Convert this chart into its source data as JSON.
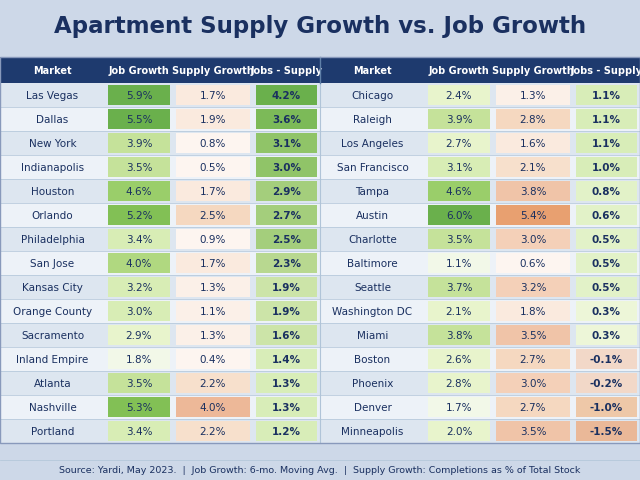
{
  "title": "Apartment Supply Growth vs. Job Growth",
  "title_color": "#1a3060",
  "header_bg": "#1e3a6e",
  "header_text_color": "#ffffff",
  "title_bg": "#cdd8e8",
  "footer_text": "Source: Yardi, May 2023.  |  Job Growth: 6-mo. Moving Avg.  |  Supply Growth: Completions as % of Total Stock",
  "footer_bg": "#cdd8e8",
  "col_headers_left": [
    "Market",
    "Job Growth",
    "Supply Growth",
    "Jobs - Supply"
  ],
  "col_headers_right": [
    "Market",
    "Job Growth",
    "Supply Growth",
    "Jobs - Supply"
  ],
  "left_data": [
    [
      "Las Vegas",
      "5.9%",
      "1.7%",
      "4.2%"
    ],
    [
      "Dallas",
      "5.5%",
      "1.9%",
      "3.6%"
    ],
    [
      "New York",
      "3.9%",
      "0.8%",
      "3.1%"
    ],
    [
      "Indianapolis",
      "3.5%",
      "0.5%",
      "3.0%"
    ],
    [
      "Houston",
      "4.6%",
      "1.7%",
      "2.9%"
    ],
    [
      "Orlando",
      "5.2%",
      "2.5%",
      "2.7%"
    ],
    [
      "Philadelphia",
      "3.4%",
      "0.9%",
      "2.5%"
    ],
    [
      "San Jose",
      "4.0%",
      "1.7%",
      "2.3%"
    ],
    [
      "Kansas City",
      "3.2%",
      "1.3%",
      "1.9%"
    ],
    [
      "Orange County",
      "3.0%",
      "1.1%",
      "1.9%"
    ],
    [
      "Sacramento",
      "2.9%",
      "1.3%",
      "1.6%"
    ],
    [
      "Inland Empire",
      "1.8%",
      "0.4%",
      "1.4%"
    ],
    [
      "Atlanta",
      "3.5%",
      "2.2%",
      "1.3%"
    ],
    [
      "Nashville",
      "5.3%",
      "4.0%",
      "1.3%"
    ],
    [
      "Portland",
      "3.4%",
      "2.2%",
      "1.2%"
    ]
  ],
  "right_data": [
    [
      "Chicago",
      "2.4%",
      "1.3%",
      "1.1%"
    ],
    [
      "Raleigh",
      "3.9%",
      "2.8%",
      "1.1%"
    ],
    [
      "Los Angeles",
      "2.7%",
      "1.6%",
      "1.1%"
    ],
    [
      "San Francisco",
      "3.1%",
      "2.1%",
      "1.0%"
    ],
    [
      "Tampa",
      "4.6%",
      "3.8%",
      "0.8%"
    ],
    [
      "Austin",
      "6.0%",
      "5.4%",
      "0.6%"
    ],
    [
      "Charlotte",
      "3.5%",
      "3.0%",
      "0.5%"
    ],
    [
      "Baltimore",
      "1.1%",
      "0.6%",
      "0.5%"
    ],
    [
      "Seattle",
      "3.7%",
      "3.2%",
      "0.5%"
    ],
    [
      "Washington DC",
      "2.1%",
      "1.8%",
      "0.3%"
    ],
    [
      "Miami",
      "3.8%",
      "3.5%",
      "0.3%"
    ],
    [
      "Boston",
      "2.6%",
      "2.7%",
      "-0.1%"
    ],
    [
      "Phoenix",
      "2.8%",
      "3.0%",
      "-0.2%"
    ],
    [
      "Denver",
      "1.7%",
      "2.7%",
      "-1.0%"
    ],
    [
      "Minneapolis",
      "2.0%",
      "3.5%",
      "-1.5%"
    ]
  ],
  "left_diff_values": [
    4.2,
    3.6,
    3.1,
    3.0,
    2.9,
    2.7,
    2.5,
    2.3,
    1.9,
    1.9,
    1.6,
    1.4,
    1.3,
    1.3,
    1.2
  ],
  "right_diff_values": [
    1.1,
    1.1,
    1.1,
    1.0,
    0.8,
    0.6,
    0.5,
    0.5,
    0.5,
    0.3,
    0.3,
    -0.1,
    -0.2,
    -1.0,
    -1.5
  ],
  "left_job_values": [
    5.9,
    5.5,
    3.9,
    3.5,
    4.6,
    5.2,
    3.4,
    4.0,
    3.2,
    3.0,
    2.9,
    1.8,
    3.5,
    5.3,
    3.4
  ],
  "left_supply_values": [
    1.7,
    1.9,
    0.8,
    0.5,
    1.7,
    2.5,
    0.9,
    1.7,
    1.3,
    1.1,
    1.3,
    0.4,
    2.2,
    4.0,
    2.2
  ],
  "right_job_values": [
    2.4,
    3.9,
    2.7,
    3.1,
    4.6,
    6.0,
    3.5,
    1.1,
    3.7,
    2.1,
    3.8,
    2.6,
    2.8,
    1.7,
    2.0
  ],
  "right_supply_values": [
    1.3,
    2.8,
    1.6,
    2.1,
    3.8,
    5.4,
    3.0,
    0.6,
    3.2,
    1.8,
    3.5,
    2.7,
    3.0,
    2.7,
    3.5
  ],
  "row_bg_light": "#dde6f0",
  "row_bg_white": "#edf2f8",
  "divider_color": "#b0c4d8"
}
